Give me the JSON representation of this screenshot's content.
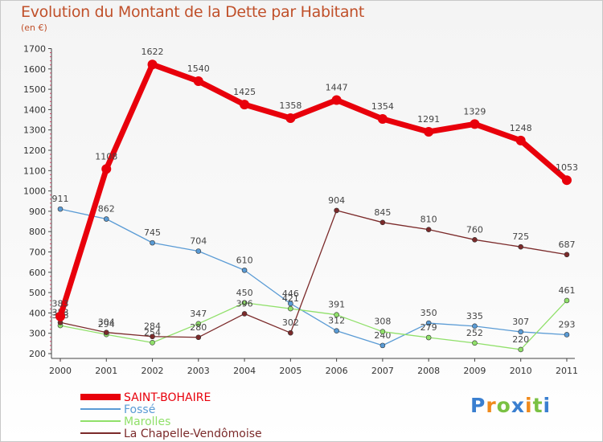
{
  "chart_data": {
    "type": "line",
    "title": "Evolution du Montant de la Dette par Habitant",
    "subtitle": "(en €)",
    "categories": [
      "2000",
      "2001",
      "2002",
      "2003",
      "2004",
      "2005",
      "2006",
      "2007",
      "2008",
      "2009",
      "2010",
      "2011"
    ],
    "ylim": [
      200,
      1700
    ],
    "yticks": [
      200,
      300,
      400,
      500,
      600,
      700,
      800,
      900,
      1000,
      1100,
      1200,
      1300,
      1400,
      1500,
      1600,
      1700
    ],
    "grid": false,
    "legend_position": "bottom-left",
    "series": [
      {
        "name": "SAINT-BOHAIRE",
        "color": "#e8000b",
        "values": [
          383,
          1108,
          1622,
          1540,
          1425,
          1358,
          1447,
          1354,
          1291,
          1329,
          1248,
          1053
        ]
      },
      {
        "name": "Fossé",
        "color": "#5a9bd5",
        "values": [
          911,
          862,
          745,
          704,
          610,
          446,
          312,
          240,
          350,
          335,
          307,
          293
        ]
      },
      {
        "name": "Marolles",
        "color": "#90e06a",
        "values": [
          338,
          294,
          254,
          347,
          450,
          421,
          391,
          308,
          279,
          252,
          220,
          461
        ]
      },
      {
        "name": "La Chapelle-Vendômoise",
        "color": "#7b2a2a",
        "values": [
          353,
          304,
          284,
          280,
          396,
          302,
          904,
          845,
          810,
          760,
          725,
          687
        ]
      }
    ]
  },
  "logo": {
    "text": "Proxiti"
  }
}
